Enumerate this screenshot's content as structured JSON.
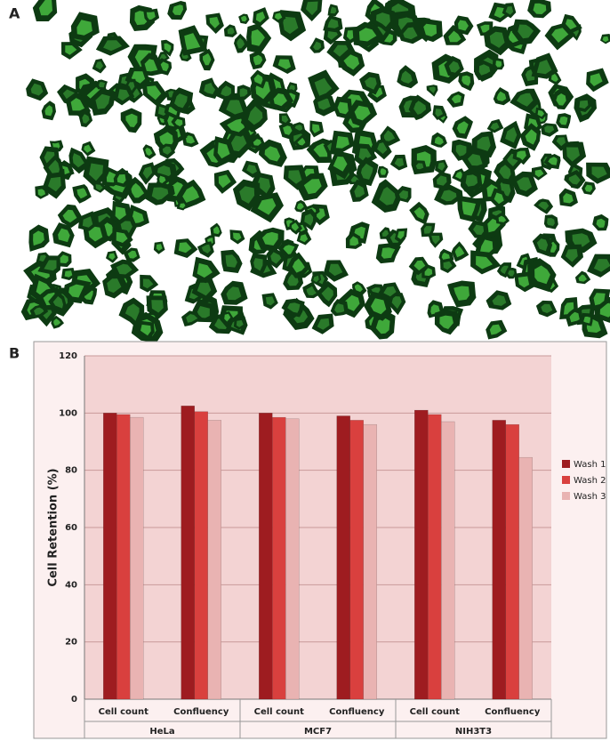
{
  "panel_labels": [
    "A",
    "B"
  ],
  "chart_data": {
    "type": "bar",
    "ylabel": "Cell Retention (%)",
    "categories": [
      "Cell count",
      "Confluency",
      "Cell count",
      "Confluency",
      "Cell count",
      "Confluency"
    ],
    "groups": [
      "HeLa",
      "MCF7",
      "NIH3T3"
    ],
    "series": [
      {
        "name": "Wash 1",
        "color": "#9e1c20",
        "values": [
          100,
          102.5,
          100,
          99,
          101,
          97.5
        ]
      },
      {
        "name": "Wash 2",
        "color": "#d9403e",
        "values": [
          99.5,
          100.5,
          98.5,
          97.5,
          99.5,
          96
        ]
      },
      {
        "name": "Wash 3",
        "color": "#e9b3b2",
        "values": [
          98.5,
          97.5,
          98,
          96,
          97,
          84.5
        ]
      }
    ],
    "ylim": [
      0,
      120
    ],
    "yticks": [
      0,
      20,
      40,
      60,
      80,
      100,
      120
    ],
    "grid": true,
    "legend": "right"
  }
}
